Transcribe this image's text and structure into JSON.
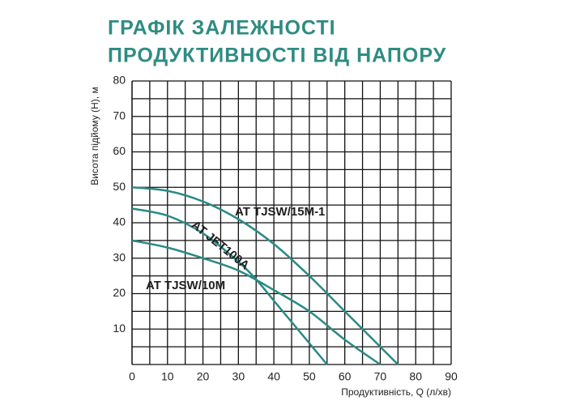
{
  "chart_data": {
    "type": "line",
    "title": [
      "ГРАФІК ЗАЛЕЖНОСТІ",
      "ПРОДУКТИВНОСТІ ВІД НАПОРУ"
    ],
    "x_label": "Продуктивність, Q (л/хв)",
    "y_label": "Висота підйому (H), м",
    "xlim": [
      0,
      90
    ],
    "ylim": [
      0,
      80
    ],
    "xticks": [
      0,
      10,
      20,
      30,
      40,
      50,
      60,
      70,
      80,
      90
    ],
    "yticks": [
      10,
      20,
      30,
      40,
      50,
      60,
      70,
      80
    ],
    "grid": true,
    "series": [
      {
        "name": "AT TJSW/15M-1",
        "color": "#2a8a84",
        "x": [
          0,
          10,
          20,
          30,
          40,
          50,
          60,
          70,
          75
        ],
        "values": [
          50,
          49,
          46,
          41,
          34,
          25,
          15,
          5,
          0
        ]
      },
      {
        "name": "AT JET100A",
        "color": "#2a8a84",
        "x": [
          0,
          10,
          20,
          30,
          35,
          40,
          45,
          50,
          55
        ],
        "values": [
          44,
          42,
          37,
          29,
          24,
          18,
          12,
          6,
          0
        ]
      },
      {
        "name": "AT TJSW/10M",
        "color": "#2a8a84",
        "x": [
          0,
          10,
          20,
          30,
          40,
          50,
          60,
          70
        ],
        "values": [
          35,
          33,
          30,
          26.5,
          21,
          15,
          7,
          0
        ]
      }
    ]
  }
}
